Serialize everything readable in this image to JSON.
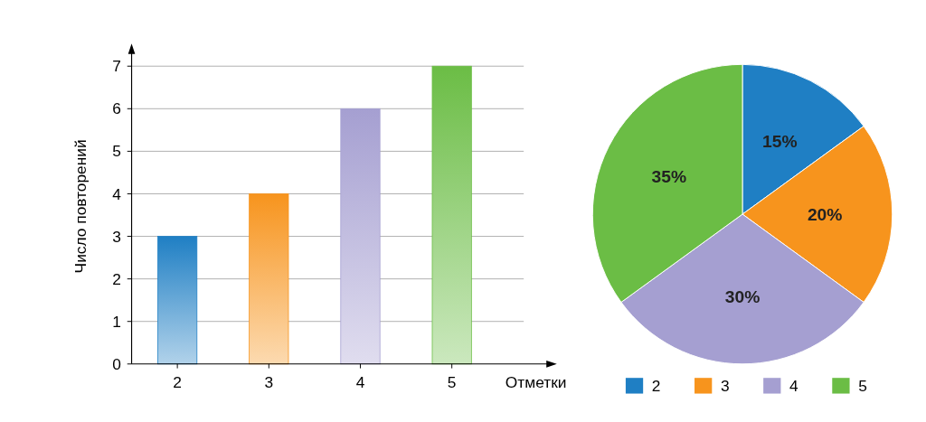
{
  "chart_data": [
    {
      "type": "bar",
      "categories": [
        "2",
        "3",
        "4",
        "5"
      ],
      "values": [
        3,
        4,
        6,
        7
      ],
      "colors": [
        "#1f7fc4",
        "#f7941d",
        "#a59fd1",
        "#6bbd45"
      ],
      "xlabel": "Отметки",
      "ylabel": "Число повторений",
      "ylim": [
        0,
        7
      ],
      "yticks": [
        0,
        1,
        2,
        3,
        4,
        5,
        6,
        7
      ],
      "grid": "y"
    },
    {
      "type": "pie",
      "categories": [
        "2",
        "3",
        "4",
        "5"
      ],
      "values": [
        15,
        20,
        30,
        35
      ],
      "colors": [
        "#1f7fc4",
        "#f7941d",
        "#a59fd1",
        "#6bbd45"
      ],
      "value_labels": [
        "15%",
        "20%",
        "30%",
        "35%"
      ],
      "legend": "bottom"
    }
  ]
}
